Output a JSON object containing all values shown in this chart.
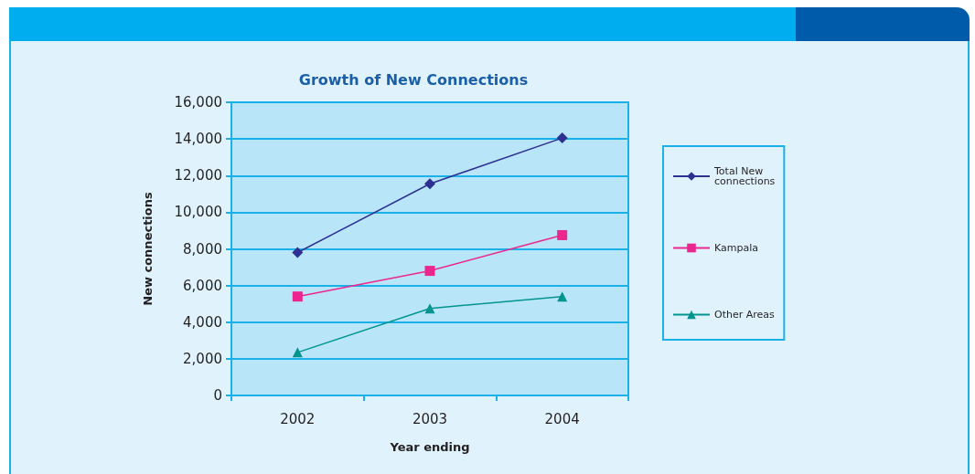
{
  "chart_data": {
    "type": "line",
    "title": "Growth of New Connections",
    "xlabel": "Year ending",
    "ylabel": "New connections",
    "categories": [
      "2002",
      "2003",
      "2004"
    ],
    "series": [
      {
        "name": "Total New connections",
        "color": "#2e3192",
        "marker": "diamond",
        "values": [
          7800,
          11550,
          14050
        ]
      },
      {
        "name": "Kampala",
        "color": "#ec268f",
        "marker": "square",
        "values": [
          5400,
          6800,
          8750
        ]
      },
      {
        "name": "Other Areas",
        "color": "#00948f",
        "marker": "triangle",
        "values": [
          2350,
          4750,
          5400
        ]
      }
    ],
    "ylim": [
      0,
      16000
    ],
    "yticks": [
      0,
      {
        "value": 2000,
        "label": "2,000"
      },
      {
        "value": 4000,
        "label": "4,000"
      },
      {
        "value": 6000,
        "label": "6,000"
      },
      {
        "value": 8000,
        "label": "8,000"
      },
      {
        "value": 10000,
        "label": "10,000"
      },
      {
        "value": 12000,
        "label": "12,000"
      },
      {
        "value": 14000,
        "label": "14,000"
      },
      {
        "value": 16000,
        "label": "16,000"
      }
    ],
    "grid": "y",
    "legend": "right",
    "line_style": "solid"
  }
}
